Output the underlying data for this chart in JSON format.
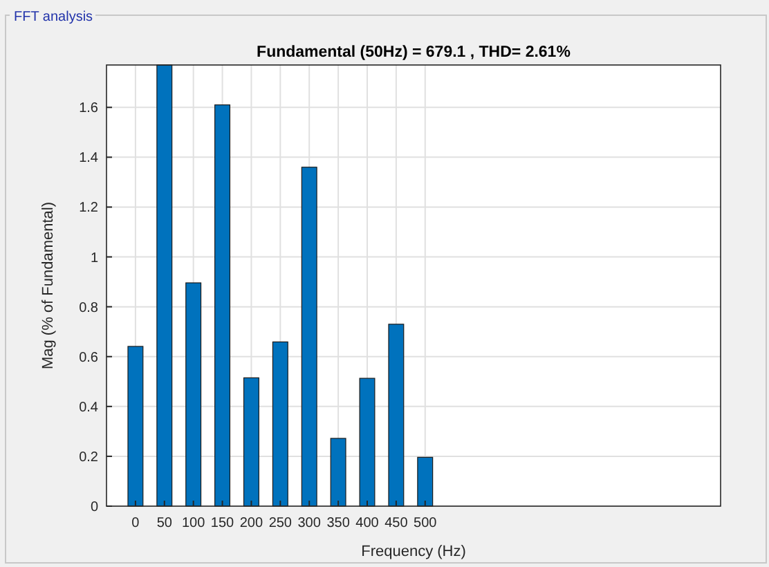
{
  "chart_data": {
    "type": "bar",
    "title": "Fundamental (50Hz) = 679.1 , THD= 2.61%",
    "xlabel": "Frequency (Hz)",
    "ylabel": "Mag (% of Fundamental)",
    "annotations": [
      "FFT analysis"
    ],
    "x": [
      0,
      50,
      100,
      150,
      200,
      250,
      300,
      350,
      400,
      450,
      500
    ],
    "values": [
      0.641,
      1.77,
      0.896,
      1.61,
      0.515,
      0.659,
      1.36,
      0.272,
      0.513,
      0.73,
      0.196
    ],
    "color": "#0072bd",
    "xlim": [
      -50,
      1010
    ],
    "xticks": [
      0,
      50,
      100,
      150,
      200,
      250,
      300,
      350,
      400,
      450,
      500
    ],
    "ylim": [
      0,
      1.77
    ],
    "yticks": [
      0,
      0.2,
      0.4,
      0.6,
      {
        "value": 0.8,
        "label": "0.8"
      },
      1,
      1.2,
      1.4,
      1.6
    ],
    "grid": true
  }
}
